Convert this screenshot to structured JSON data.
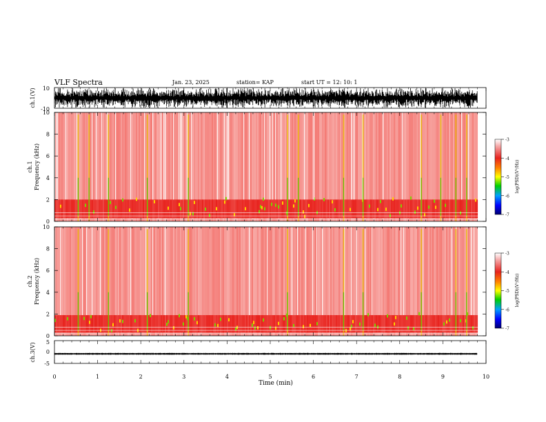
{
  "header": {
    "title": "VLF Spectra",
    "date": "Jan. 23, 2025",
    "station": "station= KAP",
    "start": "start  UT  =   12: 10: 1"
  },
  "chart_data": [
    {
      "type": "line",
      "panel": "ch1-waveform",
      "ylabel": "ch.1(V)",
      "ylim": [
        -10,
        10
      ],
      "yticks": [
        "10",
        "-10"
      ],
      "xlim": [
        0,
        10
      ],
      "description_values": {
        "typical_range_V": [
          -10,
          10
        ]
      }
    },
    {
      "type": "heatmap",
      "panel": "ch1-spectrogram",
      "ylabel_top": "ch.1",
      "ylabel": "Frequency (kHz)",
      "ylim": [
        0,
        10
      ],
      "yticks": [
        "0",
        "2",
        "4",
        "6",
        "8",
        "10"
      ],
      "xlim": [
        0,
        10
      ],
      "colorbar": {
        "label": "log(PSD)(V²/Hz)",
        "ticks": [
          "-3",
          "-4",
          "-5",
          "-6",
          "-7"
        ],
        "range": [
          -7,
          -3
        ]
      },
      "intense_band_kHz": [
        0.3,
        2.0
      ],
      "bright_vertical_streaks_min": [
        0.55,
        0.8,
        1.25,
        2.15,
        3.1,
        5.4,
        5.65,
        6.7,
        7.15,
        8.5,
        8.95,
        9.3,
        9.55
      ]
    },
    {
      "type": "heatmap",
      "panel": "ch2-spectrogram",
      "ylabel_top": "ch.2",
      "ylabel": "Frequency (kHz)",
      "ylim": [
        0,
        10
      ],
      "yticks": [
        "0",
        "2",
        "4",
        "6",
        "8",
        "10"
      ],
      "xlim": [
        0,
        10
      ],
      "colorbar": {
        "label": "log(PSD)(V²/Hz)",
        "ticks": [
          "-3",
          "-4",
          "-5",
          "-6",
          "-7"
        ],
        "range": [
          -7,
          -3
        ]
      },
      "intense_band_kHz": [
        0.3,
        1.9
      ],
      "bright_vertical_streaks_min": [
        0.55,
        1.25,
        2.15,
        3.1,
        5.4,
        6.7,
        7.15,
        8.5,
        9.3,
        9.55
      ]
    },
    {
      "type": "line",
      "panel": "ch3-waveform",
      "ylabel": "ch.3(V)",
      "ylim": [
        -5,
        5
      ],
      "yticks": [
        "5",
        "0",
        "-5"
      ],
      "xlim": [
        0,
        10
      ],
      "xlabel": "Time (min)",
      "xticks": [
        "0",
        "1",
        "2",
        "3",
        "4",
        "5",
        "6",
        "7",
        "8",
        "9",
        "10"
      ],
      "description_values": {
        "baseline_V": -0.8,
        "amplitude_V": 0.4,
        "data_end_min": 9.8
      }
    }
  ],
  "colors": {
    "low": "#ffffff",
    "mid": "#e8231e",
    "high": "#00c000",
    "peak": "#ffff00",
    "min": "#0000a0"
  }
}
